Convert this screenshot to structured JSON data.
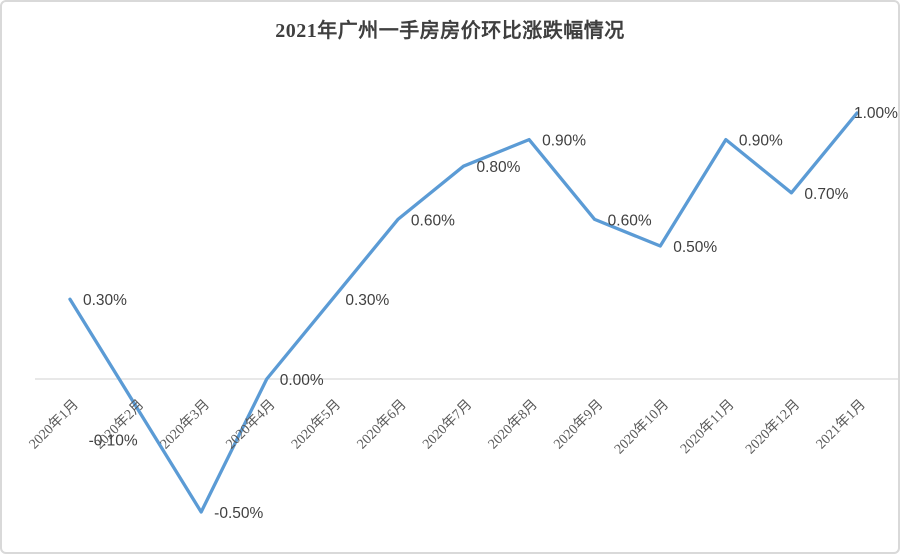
{
  "chart_data": {
    "type": "line",
    "title": "2021年广州一手房房价环比涨跌幅情况",
    "categories": [
      "2020年1月",
      "2020年2月",
      "2020年3月",
      "2020年4月",
      "2020年5月",
      "2020年6月",
      "2020年7月",
      "2020年8月",
      "2020年9月",
      "2020年10月",
      "2020年11月",
      "2020年12月",
      "2021年1月"
    ],
    "values": [
      0.3,
      -0.1,
      -0.5,
      0.0,
      0.3,
      0.6,
      0.8,
      0.9,
      0.6,
      0.5,
      0.9,
      0.7,
      1.0
    ],
    "labels": [
      "0.30%",
      "-0.10%",
      "-0.50%",
      "0.00%",
      "0.30%",
      "0.60%",
      "0.80%",
      "0.90%",
      "0.60%",
      "0.50%",
      "0.90%",
      "0.70%",
      "1.00%"
    ],
    "xlabel": "",
    "ylabel": "",
    "ylim": [
      -0.5,
      1.0
    ],
    "grid": "zero-line-only",
    "legend": "none",
    "line_color": "#5b9bd5",
    "data_label_color": "#404040",
    "axis_label_color": "#595959",
    "gridline_color": "#d9d9d9",
    "border_color": "#d9d9d9",
    "label_placements": [
      "right",
      "below-left",
      "right",
      "right",
      "right",
      "right",
      "right",
      "right",
      "right",
      "right",
      "right",
      "right",
      "on-point"
    ]
  }
}
